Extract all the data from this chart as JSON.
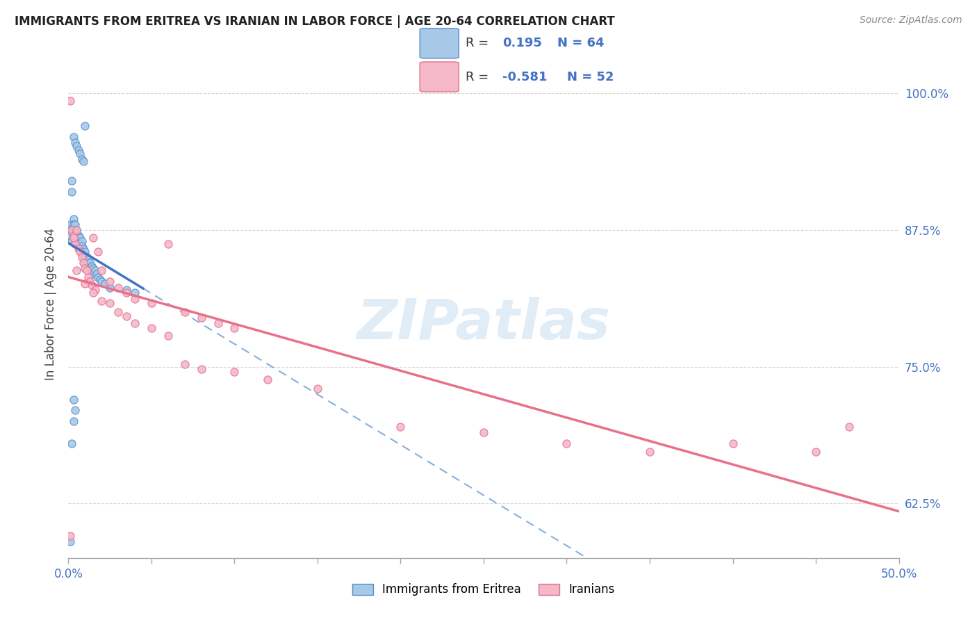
{
  "title": "IMMIGRANTS FROM ERITREA VS IRANIAN IN LABOR FORCE | AGE 20-64 CORRELATION CHART",
  "source": "Source: ZipAtlas.com",
  "ylabel": "In Labor Force | Age 20-64",
  "ytick_labels": [
    "62.5%",
    "75.0%",
    "87.5%",
    "100.0%"
  ],
  "ytick_values": [
    0.625,
    0.75,
    0.875,
    1.0
  ],
  "xmin": 0.0,
  "xmax": 0.5,
  "ymin": 0.575,
  "ymax": 1.04,
  "legend_line1": "R =  0.195   N = 64",
  "legend_line2": "R = -0.581   N = 52",
  "color_eritrea_fill": "#a8c8e8",
  "color_eritrea_edge": "#5590c8",
  "color_iranian_fill": "#f5b8c8",
  "color_iranian_edge": "#e07090",
  "color_line_eritrea_solid": "#4472c4",
  "color_line_eritrea_dashed": "#88aedd",
  "color_line_iranian": "#e8708a",
  "watermark_text": "ZIPatlas",
  "watermark_color": "#c8ddf0",
  "legend_box_color": "#f0f0f0",
  "eritrea_x": [
    0.001,
    0.001,
    0.001,
    0.002,
    0.002,
    0.002,
    0.003,
    0.003,
    0.003,
    0.003,
    0.004,
    0.004,
    0.004,
    0.004,
    0.005,
    0.005,
    0.005,
    0.005,
    0.006,
    0.006,
    0.006,
    0.007,
    0.007,
    0.007,
    0.008,
    0.008,
    0.008,
    0.009,
    0.009,
    0.01,
    0.01,
    0.01,
    0.011,
    0.011,
    0.012,
    0.012,
    0.013,
    0.013,
    0.014,
    0.014,
    0.015,
    0.015,
    0.016,
    0.017,
    0.018,
    0.019,
    0.02,
    0.022,
    0.025,
    0.003,
    0.004,
    0.005,
    0.006,
    0.007,
    0.008,
    0.009,
    0.003,
    0.004,
    0.035,
    0.04,
    0.001,
    0.002,
    0.003,
    0.01
  ],
  "eritrea_y": [
    0.88,
    0.875,
    0.87,
    0.92,
    0.91,
    0.865,
    0.885,
    0.88,
    0.875,
    0.87,
    0.88,
    0.875,
    0.87,
    0.865,
    0.875,
    0.872,
    0.868,
    0.865,
    0.87,
    0.865,
    0.86,
    0.868,
    0.862,
    0.858,
    0.865,
    0.86,
    0.855,
    0.858,
    0.852,
    0.855,
    0.85,
    0.845,
    0.85,
    0.845,
    0.848,
    0.842,
    0.845,
    0.84,
    0.842,
    0.838,
    0.84,
    0.835,
    0.838,
    0.835,
    0.832,
    0.83,
    0.828,
    0.826,
    0.822,
    0.96,
    0.955,
    0.952,
    0.948,
    0.945,
    0.94,
    0.938,
    0.7,
    0.71,
    0.82,
    0.818,
    0.59,
    0.68,
    0.72,
    0.97
  ],
  "iranian_x": [
    0.001,
    0.002,
    0.003,
    0.004,
    0.005,
    0.006,
    0.007,
    0.008,
    0.009,
    0.01,
    0.011,
    0.012,
    0.013,
    0.014,
    0.015,
    0.016,
    0.018,
    0.02,
    0.025,
    0.03,
    0.035,
    0.04,
    0.05,
    0.06,
    0.07,
    0.08,
    0.09,
    0.1,
    0.003,
    0.005,
    0.01,
    0.015,
    0.02,
    0.025,
    0.03,
    0.035,
    0.04,
    0.05,
    0.06,
    0.07,
    0.08,
    0.1,
    0.12,
    0.15,
    0.2,
    0.25,
    0.3,
    0.35,
    0.4,
    0.45,
    0.001,
    0.47
  ],
  "iranian_y": [
    0.993,
    0.875,
    0.87,
    0.862,
    0.875,
    0.858,
    0.855,
    0.85,
    0.845,
    0.84,
    0.838,
    0.832,
    0.828,
    0.825,
    0.868,
    0.82,
    0.855,
    0.838,
    0.828,
    0.822,
    0.818,
    0.812,
    0.808,
    0.862,
    0.8,
    0.795,
    0.79,
    0.785,
    0.868,
    0.838,
    0.826,
    0.818,
    0.81,
    0.808,
    0.8,
    0.796,
    0.79,
    0.785,
    0.778,
    0.752,
    0.748,
    0.745,
    0.738,
    0.73,
    0.695,
    0.69,
    0.68,
    0.672,
    0.68,
    0.672,
    0.595,
    0.695
  ]
}
